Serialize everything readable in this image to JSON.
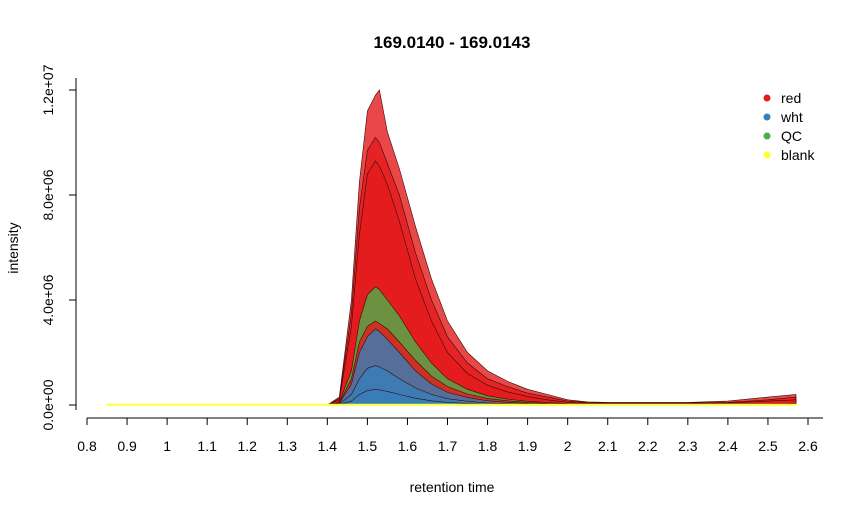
{
  "chart_data": {
    "type": "area",
    "title": "169.0140 - 169.0143",
    "xlabel": "retention time",
    "ylabel": "intensity",
    "xlim": [
      0.8,
      2.6
    ],
    "ylim": [
      0,
      12000000
    ],
    "x_ticks": [
      0.8,
      0.9,
      1.0,
      1.1,
      1.2,
      1.3,
      1.4,
      1.5,
      1.6,
      1.7,
      1.8,
      1.9,
      2.0,
      2.1,
      2.2,
      2.3,
      2.4,
      2.5,
      2.6
    ],
    "x_tick_labels": [
      "0.8",
      "0.9",
      "1",
      "1.1",
      "1.2",
      "1.3",
      "1.4",
      "1.5",
      "1.6",
      "1.7",
      "1.8",
      "1.9",
      "2",
      "2.1",
      "2.2",
      "2.3",
      "2.4",
      "2.5",
      "2.6"
    ],
    "y_ticks": [
      0,
      4000000,
      8000000,
      12000000
    ],
    "y_tick_labels": [
      "0.0e+00",
      "4.0e+06",
      "8.0e+06",
      "1.2e+07"
    ],
    "legend_position": "top-right",
    "grid": false,
    "x": [
      0.85,
      1.0,
      1.2,
      1.35,
      1.4,
      1.43,
      1.46,
      1.48,
      1.5,
      1.52,
      1.53,
      1.55,
      1.58,
      1.62,
      1.66,
      1.7,
      1.75,
      1.8,
      1.85,
      1.9,
      1.95,
      2.0,
      2.05,
      2.1,
      2.2,
      2.3,
      2.4,
      2.5,
      2.57
    ],
    "series": [
      {
        "name": "red",
        "color": "#E41A1C",
        "values": [
          0,
          0,
          0,
          0,
          0,
          300000,
          4000000,
          8500000,
          11200000,
          11800000,
          12000000,
          10400000,
          9000000,
          6800000,
          4800000,
          3200000,
          2000000,
          1300000,
          900000,
          600000,
          400000,
          200000,
          120000,
          100000,
          100000,
          100000,
          150000,
          300000,
          400000
        ]
      },
      {
        "name": "red",
        "color": "#E41A1C",
        "values": [
          0,
          0,
          0,
          0,
          0,
          250000,
          3500000,
          7500000,
          9700000,
          10200000,
          10000000,
          9200000,
          8000000,
          5800000,
          4000000,
          2600000,
          1600000,
          1000000,
          700000,
          450000,
          300000,
          150000,
          100000,
          80000,
          80000,
          80000,
          100000,
          200000,
          300000
        ]
      },
      {
        "name": "red",
        "color": "#E41A1C",
        "values": [
          0,
          0,
          0,
          0,
          0,
          200000,
          3000000,
          6500000,
          8800000,
          9300000,
          9100000,
          8400000,
          7000000,
          4800000,
          3200000,
          2000000,
          1200000,
          750000,
          500000,
          320000,
          200000,
          100000,
          70000,
          60000,
          60000,
          60000,
          80000,
          150000,
          200000
        ]
      },
      {
        "name": "QC",
        "color": "#4DAF4A",
        "values": [
          0,
          0,
          0,
          0,
          0,
          100000,
          1300000,
          3200000,
          4200000,
          4500000,
          4400000,
          4000000,
          3400000,
          2400000,
          1600000,
          1000000,
          600000,
          350000,
          220000,
          140000,
          90000,
          50000,
          30000,
          20000,
          20000,
          20000,
          30000,
          40000,
          50000
        ]
      },
      {
        "name": "red",
        "color": "#E41A1C",
        "values": [
          0,
          0,
          0,
          0,
          0,
          80000,
          1000000,
          2400000,
          3000000,
          3200000,
          3100000,
          2900000,
          2400000,
          1700000,
          1100000,
          700000,
          420000,
          250000,
          160000,
          100000,
          60000,
          40000,
          25000,
          20000,
          20000,
          20000,
          30000,
          40000,
          50000
        ]
      },
      {
        "name": "wht",
        "color": "#377EB8",
        "values": [
          0,
          0,
          0,
          0,
          0,
          60000,
          800000,
          2000000,
          2600000,
          2900000,
          2800000,
          2500000,
          2000000,
          1300000,
          800000,
          480000,
          280000,
          160000,
          100000,
          60000,
          40000,
          25000,
          15000,
          10000,
          10000,
          10000,
          15000,
          20000,
          25000
        ]
      },
      {
        "name": "wht",
        "color": "#377EB8",
        "values": [
          0,
          0,
          0,
          0,
          0,
          30000,
          400000,
          1000000,
          1400000,
          1500000,
          1450000,
          1300000,
          1000000,
          650000,
          400000,
          240000,
          140000,
          80000,
          50000,
          30000,
          20000,
          12000,
          8000,
          5000,
          5000,
          5000,
          8000,
          10000,
          12000
        ]
      },
      {
        "name": "wht",
        "color": "#377EB8",
        "values": [
          0,
          0,
          0,
          0,
          0,
          10000,
          150000,
          400000,
          550000,
          600000,
          580000,
          520000,
          400000,
          260000,
          160000,
          100000,
          60000,
          35000,
          20000,
          12000,
          8000,
          5000,
          3000,
          2000,
          2000,
          2000,
          3000,
          4000,
          5000
        ]
      },
      {
        "name": "blank",
        "color": "#FFFF33",
        "values": [
          20000,
          20000,
          20000,
          20000,
          20000,
          20000,
          20000,
          20000,
          20000,
          20000,
          20000,
          20000,
          20000,
          20000,
          20000,
          20000,
          20000,
          20000,
          20000,
          20000,
          20000,
          20000,
          20000,
          20000,
          20000,
          20000,
          20000,
          20000,
          20000
        ]
      }
    ],
    "legend": [
      {
        "label": "red",
        "color": "#E41A1C"
      },
      {
        "label": "wht",
        "color": "#377EB8"
      },
      {
        "label": "QC",
        "color": "#4DAF4A"
      },
      {
        "label": "blank",
        "color": "#FFFF33"
      }
    ]
  }
}
